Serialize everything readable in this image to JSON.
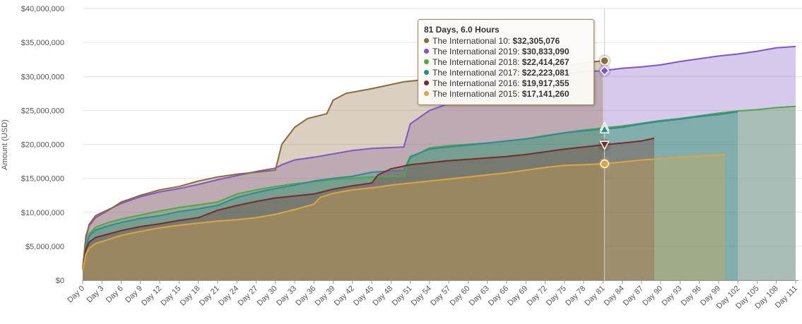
{
  "chart_data": {
    "type": "area",
    "ylabel": "Amount (USD)",
    "ylim": [
      0,
      40000000
    ],
    "y_ticks": [
      "$0",
      "$5,000,000",
      "$10,000,000",
      "$15,000,000",
      "$20,000,000",
      "$25,000,000",
      "$30,000,000",
      "$35,000,000",
      "$40,000,000"
    ],
    "x_ticks": [
      "Day 0",
      "Day 3",
      "Day 6",
      "Day 9",
      "Day 12",
      "Day 15",
      "Day 18",
      "Day 21",
      "Day 24",
      "Day 27",
      "Day 30",
      "Day 33",
      "Day 36",
      "Day 39",
      "Day 42",
      "Day 45",
      "Day 48",
      "Day 51",
      "Day 54",
      "Day 57",
      "Day 60",
      "Day 63",
      "Day 66",
      "Day 69",
      "Day 72",
      "Day 75",
      "Day 78",
      "Day 81",
      "Day 84",
      "Day 87",
      "Day 90",
      "Day 93",
      "Day 96",
      "Day 99",
      "Day 102",
      "Day 105",
      "Day 108",
      "Day 111"
    ],
    "x_unit": "days",
    "grid": true,
    "series": [
      {
        "name": "The International 2019",
        "color": "#7f56c4",
        "marker": "diamond",
        "points": [
          [
            0,
            1600000
          ],
          [
            0.5,
            6000000
          ],
          [
            1,
            8200000
          ],
          [
            2,
            9500000
          ],
          [
            4,
            10400000
          ],
          [
            6,
            11300000
          ],
          [
            9,
            12300000
          ],
          [
            12,
            13000000
          ],
          [
            15,
            13500000
          ],
          [
            18,
            14100000
          ],
          [
            21,
            14800000
          ],
          [
            24,
            15400000
          ],
          [
            27,
            16000000
          ],
          [
            30,
            16500000
          ],
          [
            31,
            17000000
          ],
          [
            33,
            17700000
          ],
          [
            36,
            18100000
          ],
          [
            39,
            18600000
          ],
          [
            42,
            19100000
          ],
          [
            45,
            19400000
          ],
          [
            50,
            19600000
          ],
          [
            50.5,
            21300000
          ],
          [
            51,
            23000000
          ],
          [
            54,
            25000000
          ],
          [
            57,
            26000000
          ],
          [
            60,
            27000000
          ],
          [
            63,
            28000000
          ],
          [
            66,
            28800000
          ],
          [
            69,
            29500000
          ],
          [
            72,
            30000000
          ],
          [
            75,
            30400000
          ],
          [
            78,
            30700000
          ],
          [
            81,
            30833090
          ],
          [
            84,
            31200000
          ],
          [
            87,
            31400000
          ],
          [
            90,
            31700000
          ],
          [
            93,
            32200000
          ],
          [
            96,
            32600000
          ],
          [
            99,
            33000000
          ],
          [
            102,
            33300000
          ],
          [
            105,
            33700000
          ],
          [
            108,
            34200000
          ],
          [
            111,
            34400000
          ]
        ]
      },
      {
        "name": "The International 10",
        "color": "#8c6a3c",
        "marker": "circle",
        "points": [
          [
            0,
            1700000
          ],
          [
            0.5,
            6500000
          ],
          [
            1,
            8000000
          ],
          [
            2,
            9200000
          ],
          [
            4,
            10300000
          ],
          [
            6,
            11500000
          ],
          [
            9,
            12500000
          ],
          [
            12,
            13300000
          ],
          [
            15,
            13800000
          ],
          [
            18,
            14600000
          ],
          [
            21,
            15200000
          ],
          [
            24,
            15600000
          ],
          [
            27,
            15900000
          ],
          [
            30,
            16200000
          ],
          [
            31,
            20000000
          ],
          [
            33,
            22500000
          ],
          [
            35,
            23800000
          ],
          [
            38,
            24500000
          ],
          [
            39,
            26500000
          ],
          [
            41,
            27500000
          ],
          [
            45,
            28200000
          ],
          [
            50,
            29200000
          ],
          [
            54,
            29600000
          ],
          [
            57,
            30300000
          ],
          [
            63,
            30700000
          ],
          [
            69,
            31000000
          ],
          [
            75,
            31500000
          ],
          [
            78,
            32000000
          ],
          [
            81,
            32305076
          ]
        ]
      },
      {
        "name": "The International 2018",
        "color": "#4fa746",
        "marker": "triangle",
        "points": [
          [
            0,
            1500000
          ],
          [
            0.5,
            5000000
          ],
          [
            1,
            6800000
          ],
          [
            2,
            7800000
          ],
          [
            4,
            8500000
          ],
          [
            6,
            9000000
          ],
          [
            9,
            9600000
          ],
          [
            12,
            10200000
          ],
          [
            15,
            10700000
          ],
          [
            18,
            11100000
          ],
          [
            21,
            11500000
          ],
          [
            24,
            12700000
          ],
          [
            27,
            13300000
          ],
          [
            30,
            13800000
          ],
          [
            33,
            14200000
          ],
          [
            36,
            14500000
          ],
          [
            39,
            14800000
          ],
          [
            42,
            15000000
          ],
          [
            45,
            15200000
          ],
          [
            50,
            15300000
          ],
          [
            51,
            18000000
          ],
          [
            54,
            19500000
          ],
          [
            57,
            19800000
          ],
          [
            63,
            20200000
          ],
          [
            69,
            20800000
          ],
          [
            72,
            21300000
          ],
          [
            75,
            21700000
          ],
          [
            78,
            22100000
          ],
          [
            81,
            22414267
          ],
          [
            84,
            22700000
          ],
          [
            87,
            23100000
          ],
          [
            90,
            23500000
          ],
          [
            93,
            23800000
          ],
          [
            96,
            24200000
          ],
          [
            99,
            24600000
          ],
          [
            102,
            24900000
          ],
          [
            105,
            25100000
          ],
          [
            108,
            25400000
          ],
          [
            111,
            25600000
          ]
        ]
      },
      {
        "name": "The International 2017",
        "color": "#2c8c95",
        "marker": "triangle",
        "points": [
          [
            0,
            1500000
          ],
          [
            0.5,
            4800000
          ],
          [
            1,
            6500000
          ],
          [
            2,
            7400000
          ],
          [
            4,
            8000000
          ],
          [
            6,
            8500000
          ],
          [
            9,
            9100000
          ],
          [
            12,
            9500000
          ],
          [
            15,
            10100000
          ],
          [
            18,
            10500000
          ],
          [
            21,
            11000000
          ],
          [
            24,
            12200000
          ],
          [
            27,
            12900000
          ],
          [
            30,
            13500000
          ],
          [
            33,
            14000000
          ],
          [
            36,
            14600000
          ],
          [
            39,
            15000000
          ],
          [
            42,
            15300000
          ],
          [
            45,
            15900000
          ],
          [
            50,
            16200000
          ],
          [
            51,
            18200000
          ],
          [
            54,
            19300000
          ],
          [
            57,
            19600000
          ],
          [
            60,
            19900000
          ],
          [
            63,
            20200000
          ],
          [
            66,
            20500000
          ],
          [
            69,
            20800000
          ],
          [
            72,
            21200000
          ],
          [
            75,
            21700000
          ],
          [
            78,
            22000000
          ],
          [
            81,
            22223081
          ],
          [
            84,
            22500000
          ],
          [
            87,
            23000000
          ],
          [
            90,
            23400000
          ],
          [
            93,
            23700000
          ],
          [
            96,
            24100000
          ],
          [
            99,
            24400000
          ],
          [
            102,
            24800000
          ]
        ]
      },
      {
        "name": "The International 2016",
        "color": "#7a2a2c",
        "marker": "triangle-down",
        "points": [
          [
            0,
            1600000
          ],
          [
            0.5,
            4500000
          ],
          [
            1,
            5600000
          ],
          [
            2,
            6300000
          ],
          [
            4,
            6800000
          ],
          [
            6,
            7300000
          ],
          [
            9,
            7900000
          ],
          [
            12,
            8300000
          ],
          [
            15,
            8800000
          ],
          [
            18,
            9200000
          ],
          [
            21,
            10300000
          ],
          [
            24,
            11000000
          ],
          [
            27,
            11600000
          ],
          [
            30,
            12100000
          ],
          [
            33,
            12400000
          ],
          [
            36,
            12700000
          ],
          [
            39,
            13400000
          ],
          [
            42,
            13900000
          ],
          [
            45,
            14300000
          ],
          [
            46,
            15500000
          ],
          [
            48,
            16400000
          ],
          [
            51,
            17000000
          ],
          [
            54,
            17300000
          ],
          [
            57,
            17600000
          ],
          [
            60,
            17800000
          ],
          [
            63,
            18000000
          ],
          [
            66,
            18200000
          ],
          [
            69,
            18500000
          ],
          [
            72,
            18900000
          ],
          [
            75,
            19300000
          ],
          [
            78,
            19600000
          ],
          [
            81,
            19917355
          ],
          [
            84,
            20200000
          ],
          [
            87,
            20500000
          ],
          [
            89,
            20900000
          ]
        ]
      },
      {
        "name": "The International 2015",
        "color": "#e0a440",
        "marker": "circle",
        "points": [
          [
            0,
            1500000
          ],
          [
            0.5,
            3800000
          ],
          [
            1,
            4700000
          ],
          [
            2,
            5400000
          ],
          [
            4,
            6000000
          ],
          [
            6,
            6600000
          ],
          [
            9,
            7200000
          ],
          [
            12,
            7700000
          ],
          [
            15,
            8100000
          ],
          [
            18,
            8400000
          ],
          [
            21,
            8700000
          ],
          [
            24,
            8900000
          ],
          [
            27,
            9200000
          ],
          [
            30,
            9700000
          ],
          [
            33,
            10400000
          ],
          [
            36,
            11200000
          ],
          [
            37,
            12200000
          ],
          [
            39,
            12800000
          ],
          [
            42,
            13300000
          ],
          [
            45,
            13600000
          ],
          [
            48,
            14000000
          ],
          [
            51,
            14300000
          ],
          [
            54,
            14600000
          ],
          [
            57,
            14900000
          ],
          [
            60,
            15200000
          ],
          [
            63,
            15500000
          ],
          [
            66,
            15800000
          ],
          [
            69,
            16200000
          ],
          [
            72,
            16600000
          ],
          [
            75,
            16900000
          ],
          [
            78,
            17000000
          ],
          [
            81,
            17141260
          ],
          [
            84,
            17400000
          ],
          [
            87,
            17700000
          ],
          [
            90,
            17900000
          ],
          [
            93,
            18100000
          ],
          [
            96,
            18300000
          ],
          [
            99,
            18400000
          ],
          [
            100,
            18500000
          ]
        ]
      }
    ],
    "tooltip": {
      "title": "81 Days, 6.0 Hours",
      "items": [
        {
          "label": "The International 10: ",
          "value": "$32,305,076",
          "color": "#8c6a3c"
        },
        {
          "label": "The International 2019: ",
          "value": "$30,833,090",
          "color": "#7f56c4"
        },
        {
          "label": "The International 2018: ",
          "value": "$22,414,267",
          "color": "#4fa746"
        },
        {
          "label": "The International 2017: ",
          "value": "$22,223,081",
          "color": "#2c8c95"
        },
        {
          "label": "The International 2016: ",
          "value": "$19,917,355",
          "color": "#7a2a2c"
        },
        {
          "label": "The International 2015: ",
          "value": "$17,141,260",
          "color": "#e0a440"
        }
      ]
    },
    "hover_day": 81.25
  }
}
